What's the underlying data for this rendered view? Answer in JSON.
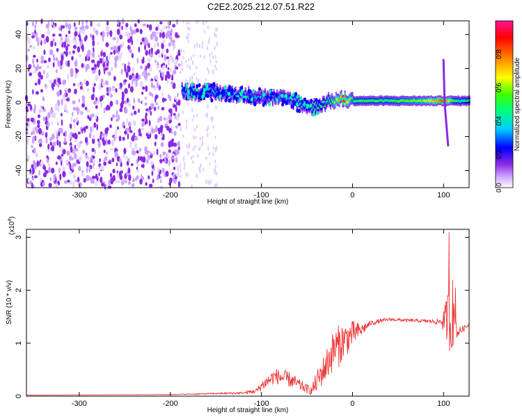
{
  "title": "C2E2.2025.212.07.51.R22",
  "colors": {
    "snr_line": "#ee3333",
    "axis": "#000000",
    "colormap": [
      "#ffffff",
      "#d8b8ff",
      "#8a2be2",
      "#0000ff",
      "#00ffff",
      "#00ff00",
      "#ffff00",
      "#ff8000",
      "#ff0000",
      "#ff1493"
    ]
  },
  "chart_data": [
    {
      "type": "heatmap",
      "xlabel": "Height of straight line (km)",
      "ylabel": "Frequency (Hz)",
      "xlim": [
        -358,
        128
      ],
      "ylim": [
        -50,
        48
      ],
      "xticks": [
        -300,
        -200,
        -100,
        0,
        100
      ],
      "xtick_labels": [
        "-300",
        "-200",
        "-100",
        "0",
        "100"
      ],
      "yticks": [
        -40,
        -20,
        0,
        20,
        40
      ],
      "ytick_labels": [
        "-40",
        "-20",
        "0",
        "20",
        "40"
      ],
      "colorbar": {
        "label": "Normalized spectral amplitude",
        "range": [
          0,
          1
        ],
        "ticks": [
          0.0,
          0.2,
          0.4,
          0.6,
          0.8
        ],
        "tick_labels": [
          "0.0",
          "0.2",
          "0.4",
          "0.6",
          "0.8"
        ]
      },
      "ridge": {
        "x": [
          -188,
          -170,
          -150,
          -130,
          -110,
          -90,
          -70,
          -55,
          -45,
          -35,
          -25,
          -10,
          0,
          20,
          40,
          60,
          80,
          100,
          110,
          128
        ],
        "freq": [
          7,
          6,
          6,
          5,
          4,
          3,
          2,
          -1,
          -3,
          -1,
          1,
          2,
          1,
          1,
          1,
          1,
          1,
          1,
          1,
          1
        ],
        "amplitude": [
          0.35,
          0.4,
          0.4,
          0.4,
          0.35,
          0.3,
          0.35,
          0.4,
          0.45,
          0.45,
          0.5,
          0.85,
          0.5,
          0.5,
          0.5,
          0.55,
          0.6,
          0.85,
          0.5,
          0.45
        ]
      },
      "noise_region": {
        "x": [
          -358,
          -190
        ],
        "amplitude": 0.15
      },
      "spike": {
        "x": 100,
        "freq_range": [
          -25,
          25
        ]
      }
    },
    {
      "type": "line",
      "xlabel": "Height of straight line (km)",
      "ylabel": "SNR (10 * v/v)",
      "scale_label": "(x10",
      "scale_exponent": "4",
      "xlim": [
        -358,
        128
      ],
      "ylim": [
        0,
        3.15
      ],
      "xticks": [
        -300,
        -200,
        -100,
        0,
        100
      ],
      "xtick_labels": [
        "-300",
        "-200",
        "-100",
        "0",
        "100"
      ],
      "yticks": [
        0,
        1,
        2,
        3
      ],
      "ytick_labels": [
        "0",
        "1",
        "2",
        "3"
      ],
      "envelope": {
        "x": [
          -358,
          -200,
          -120,
          -105,
          -100,
          -85,
          -70,
          -55,
          -45,
          -40,
          -30,
          -20,
          -15,
          -10,
          -5,
          0,
          10,
          20,
          40,
          60,
          80,
          95,
          102,
          105,
          108,
          112,
          115,
          128
        ],
        "y": [
          0.02,
          0.03,
          0.06,
          0.1,
          0.2,
          0.38,
          0.32,
          0.18,
          0.1,
          0.25,
          0.55,
          0.9,
          0.95,
          1.05,
          1.1,
          1.18,
          1.25,
          1.38,
          1.45,
          1.43,
          1.42,
          1.4,
          1.45,
          1.5,
          1.3,
          1.4,
          1.2,
          1.35
        ],
        "noise": [
          0.0,
          0.005,
          0.02,
          0.05,
          0.1,
          0.15,
          0.15,
          0.1,
          0.08,
          0.2,
          0.3,
          0.4,
          0.4,
          0.35,
          0.3,
          0.25,
          0.12,
          0.05,
          0.03,
          0.03,
          0.03,
          0.05,
          0.3,
          0.6,
          0.5,
          0.4,
          0.1,
          0.02
        ]
      },
      "peaks": [
        {
          "x": 106,
          "y": 3.1
        },
        {
          "x": 110,
          "y": 2.2
        },
        {
          "x": 113,
          "y": 2.05
        }
      ]
    }
  ]
}
